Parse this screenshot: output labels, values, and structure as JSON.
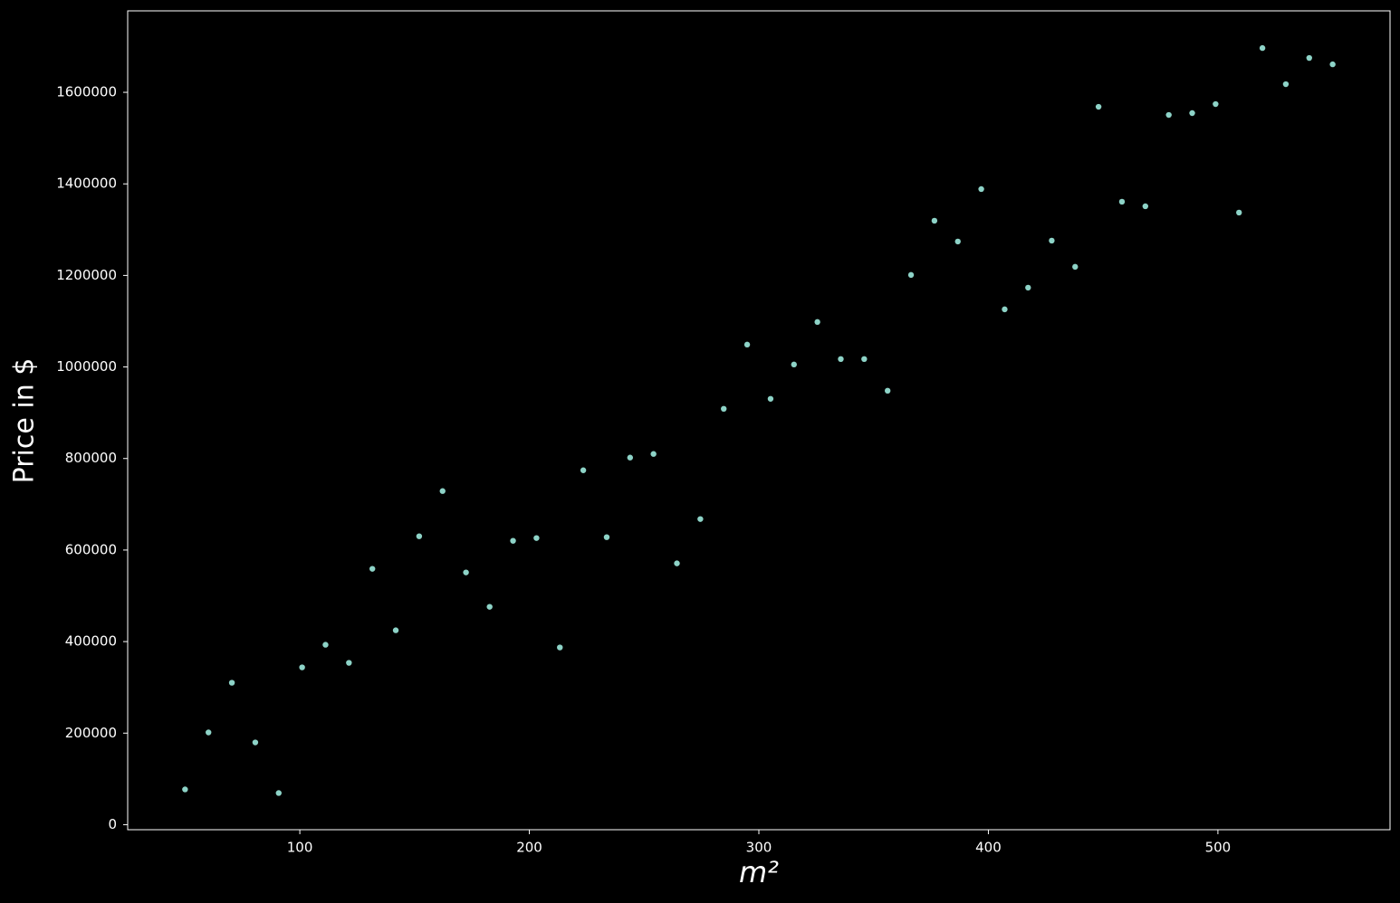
{
  "chart_data": {
    "type": "scatter",
    "xlabel": "m²",
    "ylabel": "Price in $",
    "x": [
      50,
      60.2,
      70.4,
      80.6,
      90.8,
      101.0,
      111.2,
      121.4,
      131.6,
      141.8,
      152.0,
      162.2,
      172.4,
      182.7,
      192.9,
      203.1,
      213.3,
      223.5,
      233.7,
      243.9,
      254.1,
      264.3,
      274.5,
      284.7,
      294.9,
      305.1,
      315.3,
      325.5,
      335.7,
      345.9,
      356.1,
      366.3,
      376.5,
      386.7,
      396.9,
      407.1,
      417.3,
      427.6,
      437.8,
      448.0,
      458.2,
      468.4,
      478.6,
      488.8,
      499.0,
      509.2,
      519.4,
      529.6,
      539.8,
      550
    ],
    "values": [
      77000,
      201500,
      310100,
      179700,
      69100,
      343700,
      393100,
      353600,
      559000,
      424700,
      630100,
      728900,
      551100,
      476000,
      620200,
      626200,
      387200,
      774300,
      628100,
      802000,
      809900,
      570900,
      667700,
      908600,
      1048900,
      930400,
      1005400,
      1098300,
      1017300,
      1017300,
      948100,
      1201000,
      1319500,
      1274100,
      1388600,
      1125900,
      1173300,
      1276000,
      1218800,
      1568400,
      1361000,
      1351100,
      1550600,
      1554600,
      1574300,
      1337300,
      1696800,
      1617800,
      1675100,
      1661200
    ],
    "color": "#8dd3c7",
    "xlim": [
      25,
      575
    ],
    "xticks": [
      100,
      200,
      300,
      400,
      500
    ],
    "ylim": [
      -11000,
      1778000
    ],
    "yticks": [
      0,
      200000,
      400000,
      600000,
      800000,
      1000000,
      1200000,
      1400000,
      1600000
    ],
    "grid": false
  }
}
